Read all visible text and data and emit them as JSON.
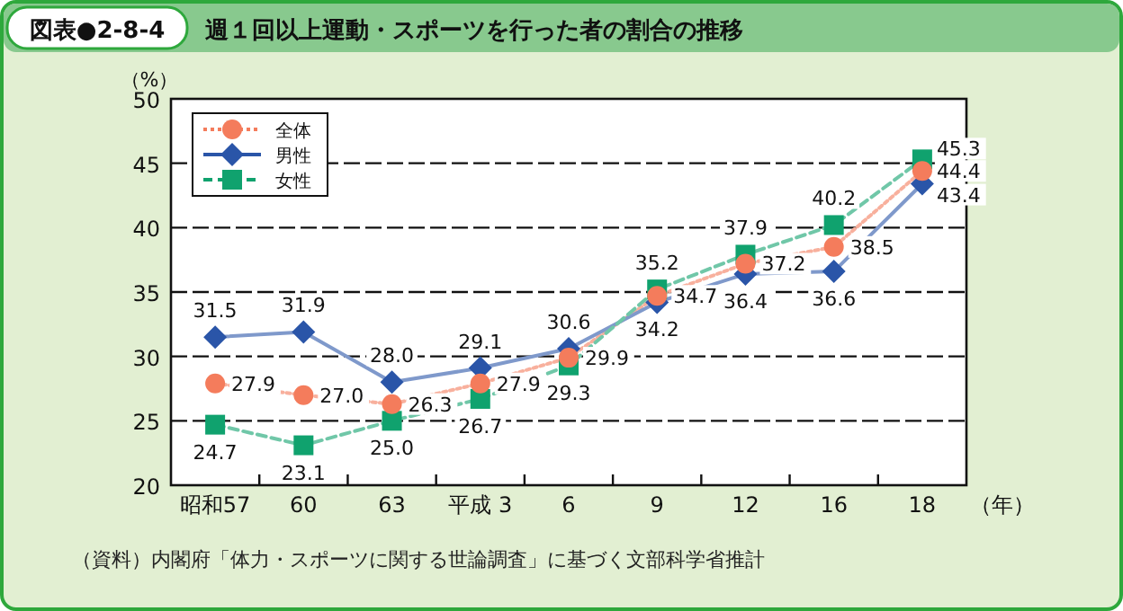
{
  "chart_data": {
    "type": "line",
    "title": "週１回以上運動・スポーツを行った者の割合の推移",
    "subtitle": "図表●2-8-4",
    "ylabel": "（%）",
    "xlabel": "（年）",
    "categories": [
      "昭和57",
      "60",
      "63",
      "平成 3",
      "6",
      "9",
      "12",
      "16",
      "18"
    ],
    "series": [
      {
        "name": "全体",
        "color": "#f47c5c",
        "marker": "circle",
        "line_style": "dotted",
        "values": [
          27.9,
          27.0,
          26.3,
          27.9,
          29.9,
          34.7,
          37.2,
          38.5,
          44.4
        ],
        "value_labels": [
          "27.9",
          "27.0",
          "26.3",
          "27.9",
          "29.9",
          "34.7",
          "37.2",
          "38.5",
          "44.4"
        ]
      },
      {
        "name": "男性",
        "color": "#2a55a8",
        "marker": "diamond",
        "line_style": "solid",
        "values": [
          31.5,
          31.9,
          28.0,
          29.1,
          30.6,
          34.2,
          36.4,
          36.6,
          43.4
        ],
        "value_labels": [
          "31.5",
          "31.9",
          "28.0",
          "29.1",
          "30.6",
          "34.2",
          "36.4",
          "36.6",
          "43.4"
        ]
      },
      {
        "name": "女性",
        "color": "#10a26e",
        "marker": "square",
        "line_style": "dashed",
        "values": [
          24.7,
          23.1,
          25.0,
          26.7,
          29.3,
          35.2,
          37.9,
          40.2,
          45.3
        ],
        "value_labels": [
          "24.7",
          "23.1",
          "25.0",
          "26.7",
          "29.3",
          "35.2",
          "37.9",
          "40.2",
          "45.3"
        ]
      }
    ],
    "ylim": [
      20,
      50
    ],
    "yticks": [
      20,
      25,
      30,
      35,
      40,
      45,
      50
    ],
    "grid": "y",
    "legend": "top left",
    "annotations": [
      "（資料）内閣府「体力・スポーツに関する世論調査」に基づく文部科学省推計"
    ]
  }
}
